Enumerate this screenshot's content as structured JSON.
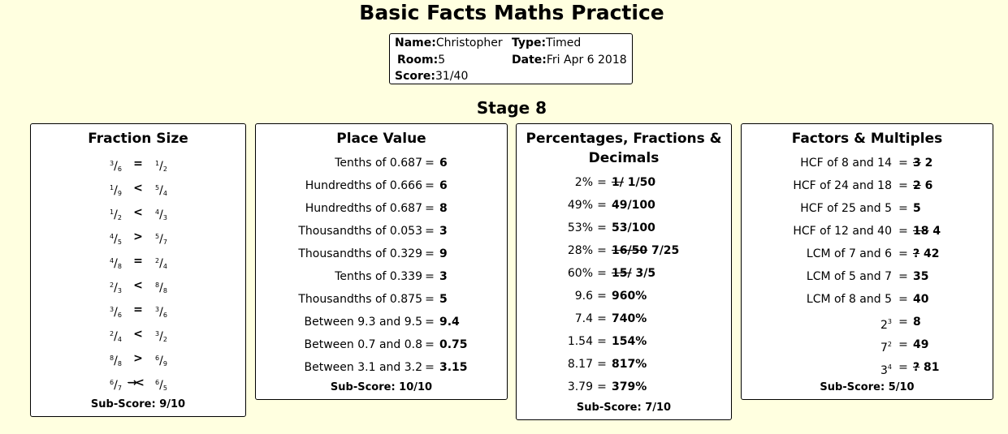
{
  "title": "Basic Facts Maths Practice",
  "info": {
    "name_label": "Name:",
    "name": "Christopher",
    "type_label": "Type:",
    "type": "Timed",
    "room_label": "Room:",
    "room": "5",
    "date_label": "Date:",
    "date": "Fri Apr 6 2018",
    "score_label": "Score:",
    "score": "31/40"
  },
  "stage": "Stage 8",
  "fraction_size": {
    "title": "Fraction Size",
    "rows": [
      {
        "a_n": "3",
        "a_d": "6",
        "sym": "=",
        "b_n": "1",
        "b_d": "2"
      },
      {
        "a_n": "1",
        "a_d": "9",
        "sym": "<",
        "b_n": "5",
        "b_d": "4"
      },
      {
        "a_n": "1",
        "a_d": "2",
        "sym": "<",
        "b_n": "4",
        "b_d": "3"
      },
      {
        "a_n": "4",
        "a_d": "5",
        "sym": ">",
        "b_n": "5",
        "b_d": "7"
      },
      {
        "a_n": "4",
        "a_d": "8",
        "sym": "=",
        "b_n": "2",
        "b_d": "4"
      },
      {
        "a_n": "2",
        "a_d": "3",
        "sym": "<",
        "b_n": "8",
        "b_d": "8"
      },
      {
        "a_n": "3",
        "a_d": "6",
        "sym": "=",
        "b_n": "3",
        "b_d": "6"
      },
      {
        "a_n": "2",
        "a_d": "4",
        "sym": "<",
        "b_n": "3",
        "b_d": "2"
      },
      {
        "a_n": "8",
        "a_d": "8",
        "sym": ">",
        "b_n": "6",
        "b_d": "9"
      },
      {
        "a_n": "6",
        "a_d": "7",
        "sym_wrong": "→",
        "sym": "<",
        "b_n": "6",
        "b_d": "5"
      }
    ],
    "subscore": "Sub-Score: 9/10"
  },
  "place_value": {
    "title": "Place Value",
    "rows": [
      {
        "q": "Tenths of 0.687",
        "a": "6"
      },
      {
        "q": "Hundredths of 0.666",
        "a": "6"
      },
      {
        "q": "Hundredths of 0.687",
        "a": "8"
      },
      {
        "q": "Thousandths of 0.053",
        "a": "3"
      },
      {
        "q": "Thousandths of 0.329",
        "a": "9"
      },
      {
        "q": "Tenths of 0.339",
        "a": "3"
      },
      {
        "q": "Thousandths of 0.875",
        "a": "5"
      },
      {
        "q": "Between 9.3 and 9.5",
        "a": "9.4"
      },
      {
        "q": "Between 0.7 and 0.8",
        "a": "0.75"
      },
      {
        "q": "Between 3.1 and 3.2",
        "a": "3.15"
      }
    ],
    "subscore": "Sub-Score: 10/10"
  },
  "percentages": {
    "title_line1": "Percentages, Fractions &",
    "title_line2": "Decimals",
    "rows": [
      {
        "q": "2%",
        "wrong": "1/",
        "a": "1/50"
      },
      {
        "q": "49%",
        "wrong": "",
        "a": "49/100"
      },
      {
        "q": "53%",
        "wrong": "",
        "a": "53/100"
      },
      {
        "q": "28%",
        "wrong": "16/50",
        "a": "7/25"
      },
      {
        "q": "60%",
        "wrong": "15/",
        "a": "3/5"
      },
      {
        "q": "9.6",
        "wrong": "",
        "a": "960%"
      },
      {
        "q": "7.4",
        "wrong": "",
        "a": "740%"
      },
      {
        "q": "1.54",
        "wrong": "",
        "a": "154%"
      },
      {
        "q": "8.17",
        "wrong": "",
        "a": "817%"
      },
      {
        "q": "3.79",
        "wrong": "",
        "a": "379%"
      }
    ],
    "subscore": "Sub-Score: 7/10"
  },
  "factors": {
    "title": "Factors & Multiples",
    "rows": [
      {
        "q": "HCF of 8 and 14",
        "wrong": "3",
        "a": "2"
      },
      {
        "q": "HCF of 24 and 18",
        "wrong": "2",
        "a": "6"
      },
      {
        "q": "HCF of 25 and 5",
        "wrong": "",
        "a": "5"
      },
      {
        "q": "HCF of 12 and 40",
        "wrong": "18",
        "a": "4"
      },
      {
        "q": "LCM of 7 and 6",
        "wrong": "?",
        "a": "42"
      },
      {
        "q": "LCM of 5 and 7",
        "wrong": "",
        "a": "35"
      },
      {
        "q": "LCM of 8 and 5",
        "wrong": "",
        "a": "40"
      },
      {
        "q_base": "2",
        "q_exp": "3",
        "wrong": "",
        "a": "8"
      },
      {
        "q_base": "7",
        "q_exp": "2",
        "wrong": "",
        "a": "49"
      },
      {
        "q_base": "3",
        "q_exp": "4",
        "wrong": "?",
        "a": "81"
      }
    ],
    "subscore": "Sub-Score: 5/10"
  },
  "equals": "="
}
